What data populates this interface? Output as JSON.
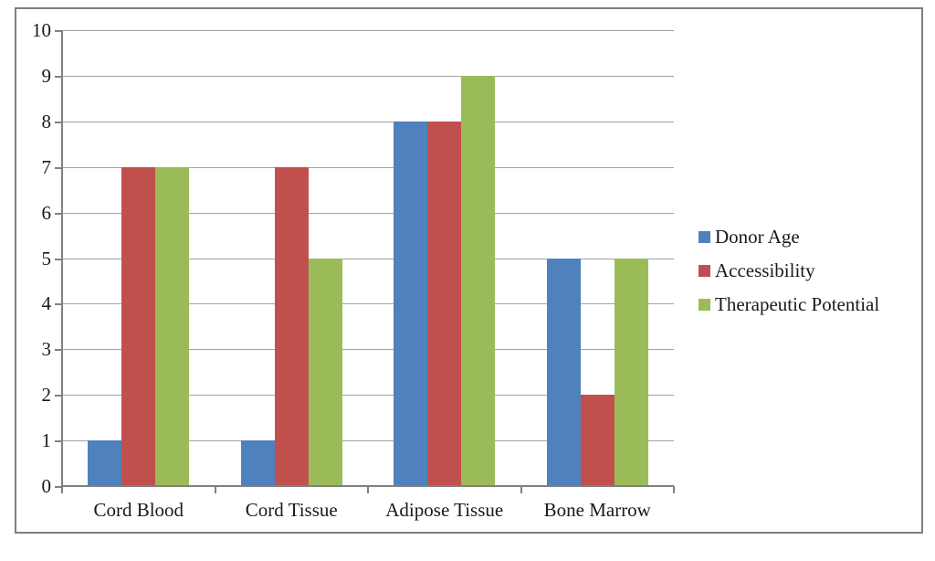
{
  "figure": {
    "background_color": "#ffffff",
    "border_color": "#7f7f7f",
    "gridline_color": "#a3a3a3",
    "axis_color": "#808080",
    "text_color": "#1a1a1a"
  },
  "chart_data": {
    "type": "bar",
    "title": "",
    "xlabel": "",
    "ylabel": "",
    "categories": [
      "Cord Blood",
      "Cord Tissue",
      "Adipose Tissue",
      "Bone Marrow"
    ],
    "series": [
      {
        "name": "Donor Age",
        "color": "#4F81BD",
        "values": [
          1,
          1,
          8,
          5
        ]
      },
      {
        "name": "Accessibility",
        "color": "#C0504D",
        "values": [
          7,
          7,
          8,
          2
        ]
      },
      {
        "name": "Therapeutic Potential",
        "color": "#9BBB59",
        "values": [
          7,
          5,
          9,
          5
        ]
      }
    ],
    "ylim": [
      0,
      10
    ],
    "y_ticks": [
      0,
      1,
      2,
      3,
      4,
      5,
      6,
      7,
      8,
      9,
      10
    ],
    "grid": true,
    "legend_position": "right"
  }
}
